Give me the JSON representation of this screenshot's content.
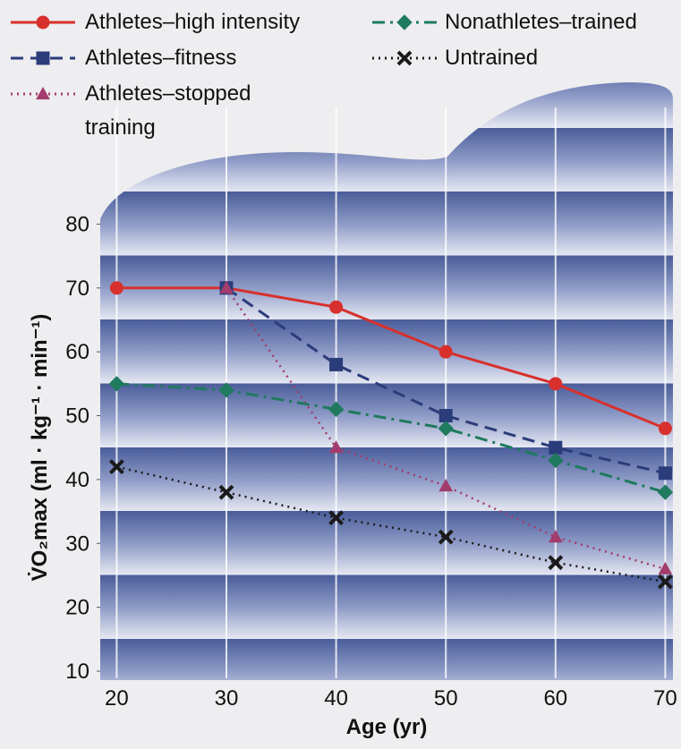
{
  "chart_data": {
    "type": "line",
    "x_label": "Age (yr)",
    "y_label": "V̇O₂max (ml · kg⁻¹ · min⁻¹)",
    "x": [
      20,
      30,
      40,
      50,
      60,
      70
    ],
    "xlim": [
      18.5,
      70.7
    ],
    "xticks": [
      20,
      30,
      40,
      50,
      60,
      70
    ],
    "ylim": [
      10,
      83
    ],
    "yticks": [
      10,
      20,
      30,
      40,
      50,
      60,
      70,
      80
    ],
    "grid": true,
    "series": [
      {
        "name": "Athletes–high intensity",
        "color": "#d8302c",
        "marker": "circle",
        "dash": "solid",
        "values": [
          70,
          70,
          67,
          60,
          55,
          48
        ]
      },
      {
        "name": "Athletes–fitness",
        "color": "#2a3c7a",
        "marker": "square",
        "dash": "dashed",
        "values": [
          null,
          70,
          58,
          50,
          45,
          41
        ]
      },
      {
        "name": "Athletes–stopped training",
        "color": "#a23c6c",
        "marker": "triangle",
        "dash": "dotted",
        "values": [
          null,
          70,
          45,
          39,
          31,
          26
        ]
      },
      {
        "name": "Nonathletes–trained",
        "color": "#1f7a5e",
        "marker": "diamond",
        "dash": "dashdot",
        "values": [
          55,
          54,
          51,
          48,
          43,
          38
        ]
      },
      {
        "name": "Untrained",
        "color": "#1a1a1a",
        "marker": "x",
        "dash": "dotted",
        "values": [
          42,
          38,
          34,
          31,
          27,
          24
        ]
      }
    ]
  }
}
